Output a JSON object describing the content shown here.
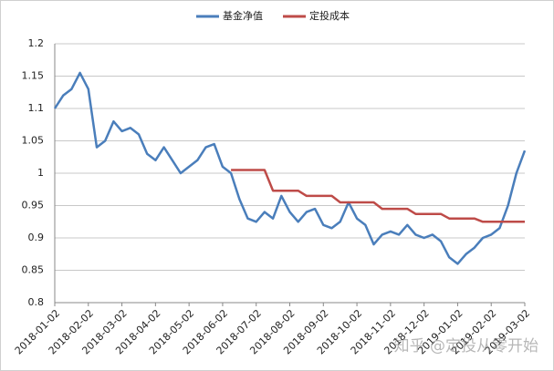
{
  "chart_data": {
    "type": "line",
    "legend": "top",
    "grid": true,
    "watermark": "知乎 @定投从零开始",
    "categories": [
      "2018-01-02",
      null,
      null,
      null,
      "2018-02-02",
      null,
      null,
      null,
      "2018-03-02",
      null,
      null,
      null,
      "2018-04-02",
      null,
      null,
      null,
      "2018-05-02",
      null,
      null,
      null,
      "2018-06-02",
      null,
      null,
      null,
      "2018-07-02",
      null,
      null,
      null,
      "2018-08-02",
      null,
      null,
      null,
      "2018-09-02",
      null,
      null,
      null,
      "2018-10-02",
      null,
      null,
      null,
      "2018-11-02",
      null,
      null,
      null,
      "2018-12-02",
      null,
      null,
      null,
      "2019-01-02",
      null,
      null,
      null,
      "2019-02-02",
      null,
      null,
      null,
      "2019-03-02"
    ],
    "series": [
      {
        "name": "基金净值",
        "color": "#4a7ebb",
        "values": [
          1.1,
          1.12,
          1.13,
          1.155,
          1.13,
          1.04,
          1.05,
          1.08,
          1.065,
          1.07,
          1.06,
          1.03,
          1.02,
          1.04,
          1.02,
          1.0,
          1.01,
          1.02,
          1.04,
          1.045,
          1.01,
          1.0,
          0.96,
          0.93,
          0.925,
          0.94,
          0.93,
          0.965,
          0.94,
          0.925,
          0.94,
          0.945,
          0.92,
          0.915,
          0.925,
          0.955,
          0.93,
          0.92,
          0.89,
          0.905,
          0.91,
          0.905,
          0.92,
          0.905,
          0.9,
          0.905,
          0.895,
          0.87,
          0.86,
          0.875,
          0.885,
          0.9,
          0.905,
          0.915,
          0.95,
          1.0,
          1.035
        ]
      },
      {
        "name": "定投成本",
        "color": "#be4b48",
        "values": [
          null,
          null,
          null,
          null,
          null,
          null,
          null,
          null,
          null,
          null,
          null,
          null,
          null,
          null,
          null,
          null,
          null,
          null,
          null,
          null,
          null,
          1.005,
          1.005,
          1.005,
          1.005,
          1.005,
          0.973,
          0.973,
          0.973,
          0.973,
          0.965,
          0.965,
          0.965,
          0.965,
          0.955,
          0.955,
          0.955,
          0.955,
          0.955,
          0.945,
          0.945,
          0.945,
          0.945,
          0.937,
          0.937,
          0.937,
          0.937,
          0.93,
          0.93,
          0.93,
          0.93,
          0.925,
          0.925,
          0.925,
          0.925,
          0.925,
          0.925
        ]
      }
    ],
    "ylim": [
      0.8,
      1.2
    ],
    "yticks": [
      0.8,
      0.85,
      0.9,
      0.95,
      1,
      1.05,
      1.1,
      1.15,
      1.2
    ]
  }
}
